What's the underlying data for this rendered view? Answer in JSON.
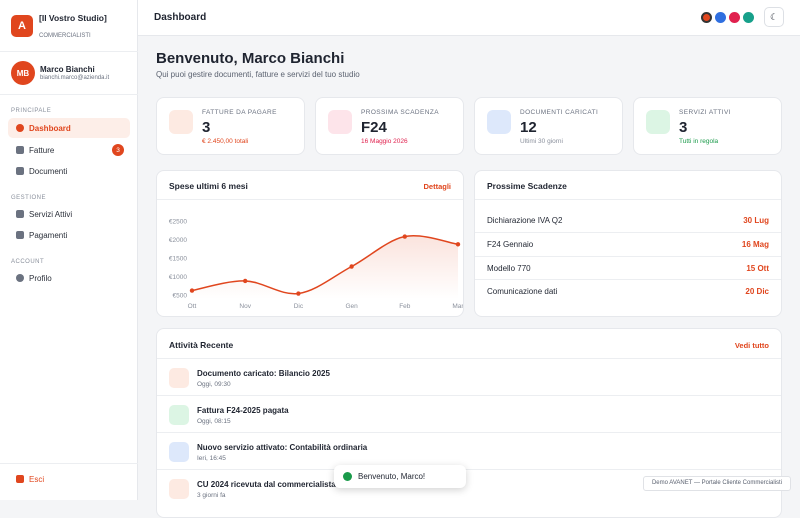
{
  "sidebar": {
    "logo_letter": "A",
    "studio_name": "[Il Vostro Studio]",
    "studio_sub": "COMMERCIALISTI",
    "user": {
      "initials": "MB",
      "name": "Marco Bianchi",
      "email": "bianchi.marco@azienda.it"
    },
    "sections": [
      {
        "title": "PRINCIPALE",
        "items": [
          {
            "label": "Dashboard"
          },
          {
            "label": "Fatture",
            "badge": 3
          },
          {
            "label": "Documenti"
          }
        ]
      },
      {
        "title": "GESTIONE",
        "items": [
          {
            "label": "Servizi Attivi"
          },
          {
            "label": "Pagamenti"
          }
        ]
      },
      {
        "title": "ACCOUNT",
        "items": [
          {
            "label": "Profilo"
          }
        ]
      }
    ],
    "logout": "Esci"
  },
  "header": {
    "title": "Dashboard"
  },
  "welcome": {
    "title": "Benvenuto, Marco Bianchi",
    "subtitle": "Qui puoi gestire documenti, fatture e servizi del tuo studio"
  },
  "stats": [
    {
      "label": "FATTURE DA PAGARE",
      "value": "3",
      "note": "€ 2.450,00 totali"
    },
    {
      "label": "PROSSIMA SCADENZA",
      "value": "F24",
      "note": "16 Maggio 2026"
    },
    {
      "label": "DOCUMENTI CARICATI",
      "value": "12",
      "note": "Ultimi 30 giorni"
    },
    {
      "label": "SERVIZI ATTIVI",
      "value": "3",
      "note": "Tutti in regola"
    }
  ],
  "spending_chart": {
    "type": "line",
    "title": "Spese ultimi 6 mesi",
    "link": "Dettagli",
    "categories": [
      "Ott",
      "Nov",
      "Dic",
      "Gen",
      "Feb",
      "Mar"
    ],
    "values": [
      620,
      880,
      540,
      1270,
      2080,
      1870
    ],
    "color": "#e0461e",
    "ylim": [
      500,
      2500
    ],
    "yticks": [
      {
        "value": 500,
        "label": "€500"
      },
      {
        "value": 1000,
        "label": "€1000"
      },
      {
        "value": 1500,
        "label": "€1500"
      },
      {
        "value": 2000,
        "label": "€2000"
      },
      {
        "value": 2500,
        "label": "€2500"
      }
    ]
  },
  "deadlines": {
    "title": "Prossime Scadenze",
    "items": [
      {
        "label": "Dichiarazione IVA Q2",
        "date": "30 Lug"
      },
      {
        "label": "F24 Gennaio",
        "date": "16 Mag"
      },
      {
        "label": "Modello 770",
        "date": "15 Ott"
      },
      {
        "label": "Comunicazione dati",
        "date": "20 Dic"
      }
    ]
  },
  "activity": {
    "title": "Attività Recente",
    "link": "Vedi tutto",
    "items": [
      {
        "title": "Documento caricato: Bilancio 2025",
        "time": "Oggi, 09:30"
      },
      {
        "title": "Fattura F24-2025 pagata",
        "time": "Oggi, 08:15"
      },
      {
        "title": "Nuovo servizio attivato: Contabilità ordinaria",
        "time": "Ieri, 16:45"
      },
      {
        "title": "CU 2024 ricevuta dal commercialista",
        "time": "3 giorni fa"
      }
    ]
  },
  "toast": "Benvenuto, Marco!",
  "footer": "Demo AVANET — Portale Cliente Commercialisti"
}
